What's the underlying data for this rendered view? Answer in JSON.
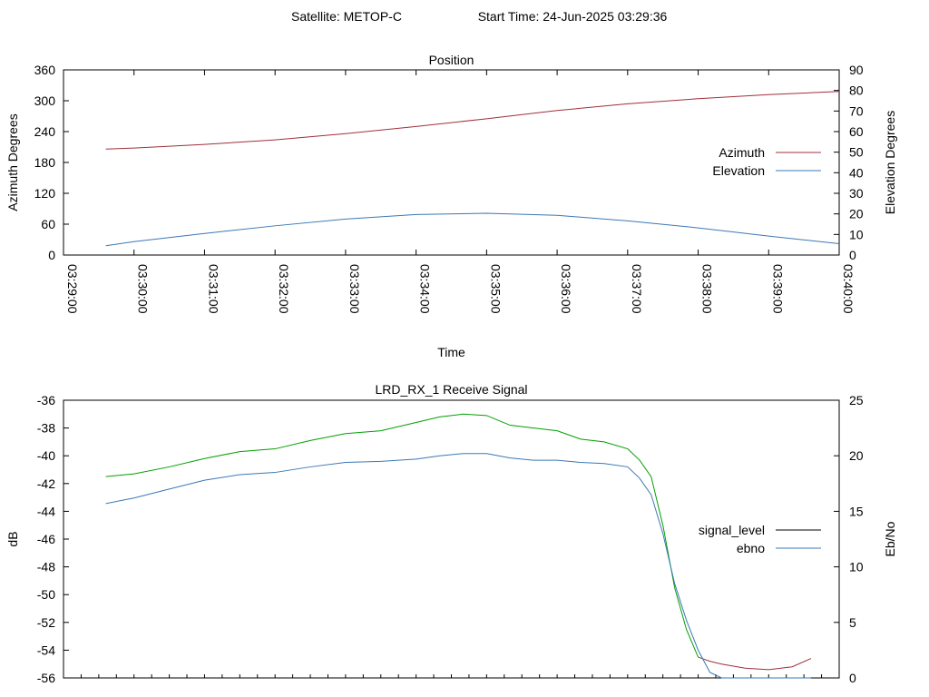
{
  "header": {
    "satellite_label": "Satellite: METOP-C",
    "start_time_label": "Start Time: 24-Jun-2025 03:29:36"
  },
  "chart_data": [
    {
      "type": "line",
      "title": "Position",
      "xlabel": "Time",
      "ylabel": "Azimuth Degrees",
      "y2label": "Elevation Degrees",
      "xlim": [
        "03:29:00",
        "03:40:00"
      ],
      "ylim": [
        0,
        360
      ],
      "y2lim": [
        0,
        90
      ],
      "x_ticks": [
        "03:29:00",
        "03:30:00",
        "03:31:00",
        "03:32:00",
        "03:33:00",
        "03:34:00",
        "03:35:00",
        "03:36:00",
        "03:37:00",
        "03:38:00",
        "03:39:00",
        "03:40:00"
      ],
      "y_ticks": [
        0,
        60,
        120,
        180,
        240,
        300,
        360
      ],
      "y2_ticks": [
        0,
        10,
        20,
        30,
        40,
        50,
        60,
        70,
        80,
        90
      ],
      "legend_position": "right",
      "x_values": [
        "03:29:36",
        "03:30:00",
        "03:31:00",
        "03:32:00",
        "03:33:00",
        "03:34:00",
        "03:35:00",
        "03:36:00",
        "03:37:00",
        "03:38:00",
        "03:39:00",
        "03:40:00"
      ],
      "series": [
        {
          "name": "Azimuth",
          "axis": "left",
          "color": "#a0303a",
          "values": [
            206,
            208,
            215,
            224,
            236,
            250,
            265,
            281,
            294,
            304,
            312,
            318
          ]
        },
        {
          "name": "Elevation",
          "axis": "right",
          "color": "#3b78b5",
          "values": [
            4.5,
            6.5,
            10.5,
            14.2,
            17.5,
            19.7,
            20.3,
            19.3,
            16.6,
            13.2,
            9.2,
            5.5
          ]
        }
      ]
    },
    {
      "type": "line",
      "title": "LRD_RX_1 Receive Signal",
      "xlabel": "",
      "ylabel": "dB",
      "y2label": "Eb/No",
      "xlim": [
        "03:29:00",
        "03:40:00"
      ],
      "ylim": [
        -56,
        -36
      ],
      "y2lim": [
        0,
        25
      ],
      "y_ticks": [
        -56,
        -54,
        -52,
        -50,
        -48,
        -46,
        -44,
        -42,
        -40,
        -38,
        -36
      ],
      "y2_ticks": [
        0,
        5,
        10,
        15,
        20,
        25
      ],
      "legend_position": "right",
      "x_values": [
        "03:29:36",
        "03:30:00",
        "03:30:30",
        "03:31:00",
        "03:31:30",
        "03:32:00",
        "03:32:30",
        "03:33:00",
        "03:33:30",
        "03:34:00",
        "03:34:20",
        "03:34:40",
        "03:35:00",
        "03:35:20",
        "03:35:40",
        "03:36:00",
        "03:36:20",
        "03:36:40",
        "03:37:00",
        "03:37:10",
        "03:37:20",
        "03:37:30",
        "03:37:40",
        "03:37:50",
        "03:38:00",
        "03:38:10",
        "03:38:20",
        "03:38:40",
        "03:39:00",
        "03:39:20",
        "03:39:36"
      ],
      "series": [
        {
          "name": "signal_level",
          "axis": "left",
          "color": "#000000",
          "segment_colors": [
            "#00a000",
            "#a0303a"
          ],
          "values": [
            -41.5,
            -41.3,
            -40.8,
            -40.2,
            -39.7,
            -39.5,
            -38.9,
            -38.4,
            -38.2,
            -37.6,
            -37.2,
            -37.0,
            -37.1,
            -37.8,
            -38.0,
            -38.2,
            -38.8,
            -39.0,
            -39.5,
            -40.3,
            -41.5,
            -45.0,
            -49.5,
            -52.5,
            -54.5,
            -54.8,
            -55.0,
            -55.3,
            -55.4,
            -55.2,
            -54.6
          ]
        },
        {
          "name": "ebno",
          "axis": "right",
          "color": "#3b78b5",
          "values": [
            15.7,
            16.2,
            17.0,
            17.8,
            18.3,
            18.5,
            19.0,
            19.4,
            19.5,
            19.7,
            20.0,
            20.2,
            20.2,
            19.8,
            19.6,
            19.6,
            19.4,
            19.3,
            19.0,
            18.0,
            16.5,
            13.0,
            8.5,
            5.2,
            2.5,
            0.5,
            0,
            0,
            0,
            0,
            0
          ]
        }
      ]
    }
  ]
}
